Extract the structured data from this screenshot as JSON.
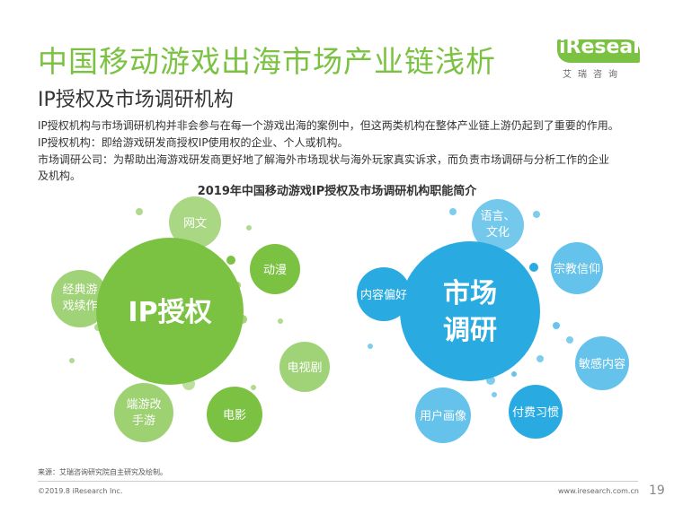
{
  "header": {
    "title": "中国移动游戏出海市场产业链浅析",
    "subtitle": "IP授权及市场调研机构"
  },
  "logo": {
    "word": "iResearch",
    "cn": "艾瑞咨询",
    "color": "#7cc242"
  },
  "intro": [
    "IP授权机构与市场调研机构并非会参与在每一个游戏出海的案例中，但这两类机构在整体产业链上游仍起到了重要的作用。",
    "IP授权机构：即给游戏研发商授权IP使用权的企业、个人或机构。",
    "市场调研公司：为帮助出海游戏研发商更好地了解海外市场现状与海外玩家真实诉求，而负责市场调研与分析工作的企业",
    "及机构。"
  ],
  "diagram": {
    "title": "2019年中国移动游戏IP授权及市场调研机构职能简介",
    "left_hub": {
      "label": "IP授权",
      "color": "#7cc242",
      "satellites": [
        "网文",
        "动漫",
        "经典游戏续作",
        "电视剧",
        "端游改手游",
        "电影"
      ]
    },
    "right_hub": {
      "label": "市场调研",
      "color": "#29abe2",
      "satellites": [
        "语言、文化",
        "宗教信仰",
        "内容偏好",
        "敏感内容",
        "用户画像",
        "付费习惯"
      ]
    }
  },
  "footer": {
    "source": "来源：艾瑞咨询研究院自主研究及绘制。",
    "copyright": "©2019.8 iResearch Inc.",
    "website": "www.iresearch.com.cn",
    "page": "19"
  }
}
